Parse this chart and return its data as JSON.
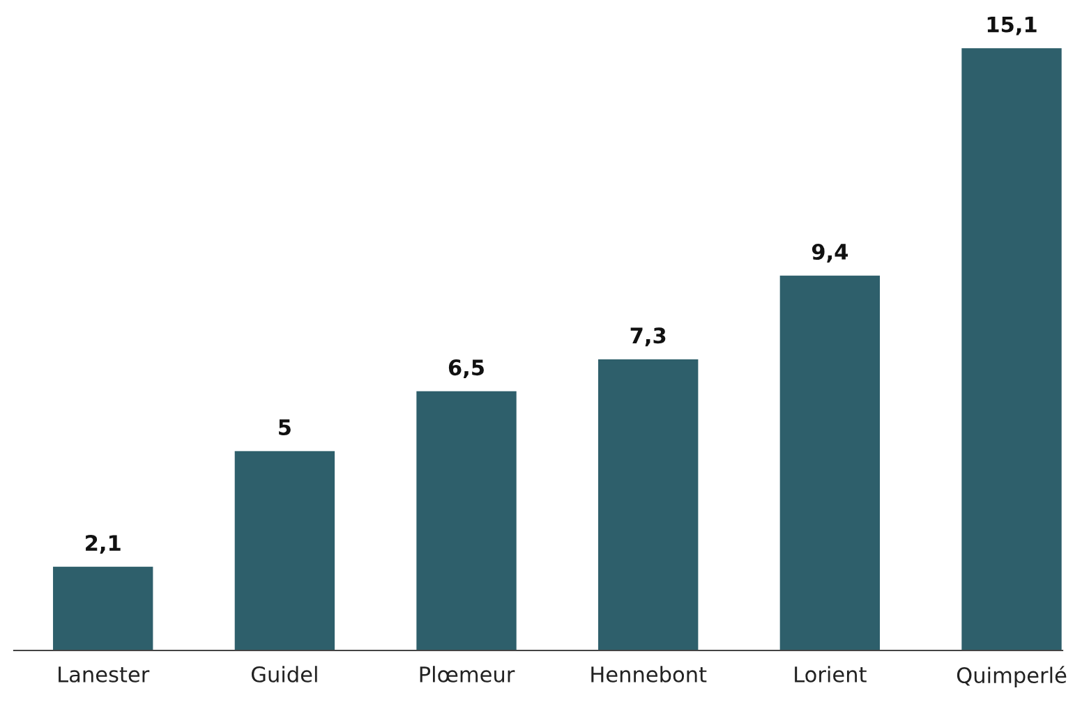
{
  "chart_data": {
    "type": "bar",
    "categories": [
      "Lanester",
      "Guidel",
      "Plœmeur",
      "Hennebont",
      "Lorient",
      "Quimperlé"
    ],
    "values": [
      2.1,
      5,
      6.5,
      7.3,
      9.4,
      15.1
    ],
    "value_labels": [
      "2,1",
      "5",
      "6,5",
      "7,3",
      "9,4",
      "15,1"
    ],
    "color": "#2e5f6b",
    "tick_labels": "x",
    "grid": false,
    "legend": false
  }
}
